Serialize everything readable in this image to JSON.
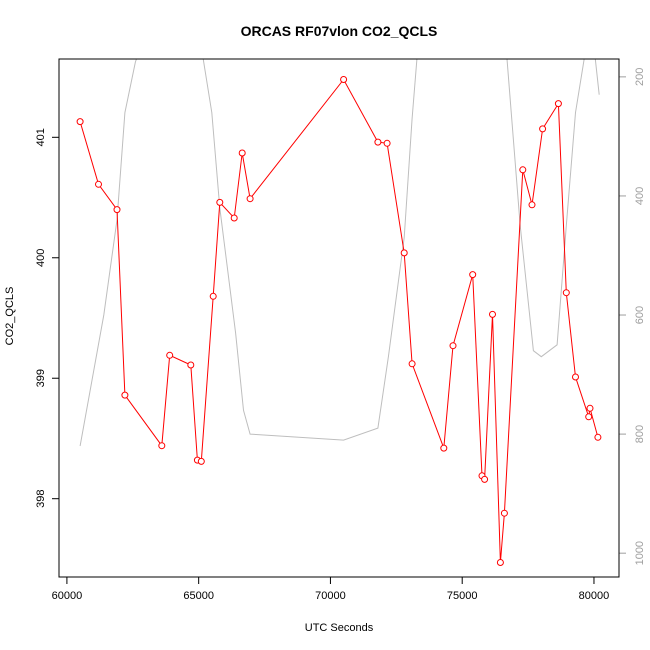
{
  "chart_data": {
    "type": "line",
    "title": "ORCAS RF07vlon CO2_QCLS",
    "xlabel": "UTC Seconds",
    "ylabel": "CO2_QCLS",
    "xlim": [
      59700,
      80950
    ],
    "ylim": [
      397.35,
      401.65
    ],
    "y2lim": [
      1040,
      170
    ],
    "x_ticks": [
      60000,
      65000,
      70000,
      75000,
      80000
    ],
    "y_ticks": [
      398,
      399,
      400,
      401
    ],
    "y2_ticks": [
      200,
      400,
      600,
      800,
      1000
    ],
    "grid": false,
    "series": [
      {
        "color": "#ff0000",
        "marker": "circle",
        "axis": "left",
        "x": [
          60500,
          61200,
          61900,
          62200,
          63600,
          63900,
          64700,
          64950,
          65100,
          65550,
          65800,
          66350,
          66650,
          66950,
          70500,
          71800,
          72150,
          72800,
          73100,
          74300,
          74650,
          75400,
          75750,
          75850,
          76150,
          76450,
          76600,
          77300,
          77650,
          78050,
          78650,
          78950,
          79300,
          79800,
          79850,
          80150
        ],
        "values": [
          401.13,
          400.61,
          400.4,
          398.86,
          398.44,
          399.19,
          399.11,
          398.32,
          398.31,
          399.68,
          400.46,
          400.33,
          400.87,
          400.49,
          401.48,
          400.96,
          400.95,
          400.04,
          399.12,
          398.42,
          399.27,
          399.86,
          398.19,
          398.16,
          399.53,
          397.47,
          397.88,
          400.73,
          400.44,
          401.07,
          401.28,
          399.71,
          399.01,
          398.68,
          398.75,
          398.51
        ]
      },
      {
        "color": "#bebebe",
        "marker": "none",
        "axis": "right",
        "x": [
          60500,
          61400,
          61900,
          62200,
          62600,
          62800,
          63000,
          63500,
          63900,
          64800,
          64950,
          65100,
          65500,
          65800,
          66400,
          66700,
          66950,
          70500,
          71800,
          72200,
          72800,
          73100,
          73300,
          74300,
          74650,
          75400,
          75600,
          76200,
          76400,
          76700,
          77200,
          77700,
          78000,
          78600,
          78950,
          79300,
          79700,
          80000,
          80200
        ],
        "values": [
          820,
          600,
          440,
          260,
          175,
          150,
          150,
          150,
          170,
          170,
          150,
          150,
          260,
          420,
          630,
          760,
          800,
          810,
          790,
          670,
          470,
          270,
          160,
          150,
          170,
          170,
          150,
          150,
          150,
          170,
          450,
          660,
          670,
          650,
          450,
          260,
          150,
          150,
          230
        ]
      }
    ]
  }
}
